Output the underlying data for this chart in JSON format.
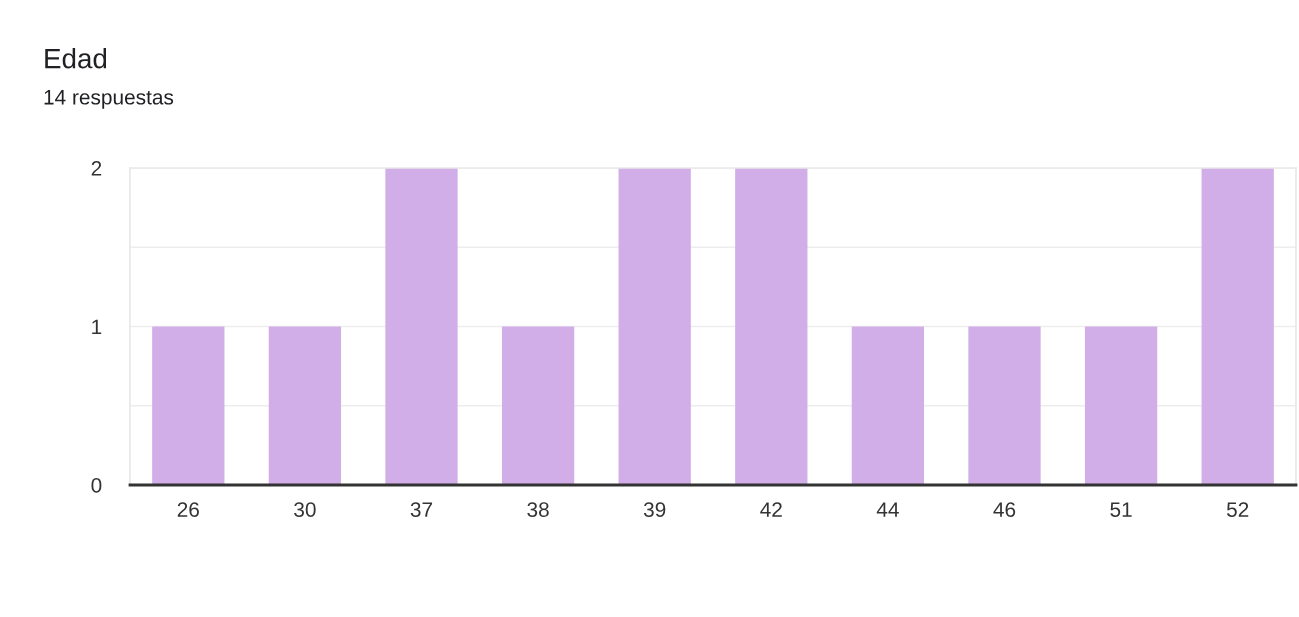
{
  "chart_data": {
    "type": "bar",
    "title": "Edad",
    "subtitle": "14 respuestas",
    "categories": [
      "26",
      "30",
      "37",
      "38",
      "39",
      "42",
      "44",
      "46",
      "51",
      "52"
    ],
    "values": [
      1,
      1,
      2,
      1,
      2,
      2,
      1,
      1,
      1,
      2
    ],
    "color": "#d1aee8",
    "ylim": [
      0,
      2
    ],
    "yticks": [
      0,
      {
        "value": 0.5,
        "label": null
      },
      1,
      {
        "value": 1.5,
        "label": null
      },
      2
    ],
    "grid": "y"
  }
}
